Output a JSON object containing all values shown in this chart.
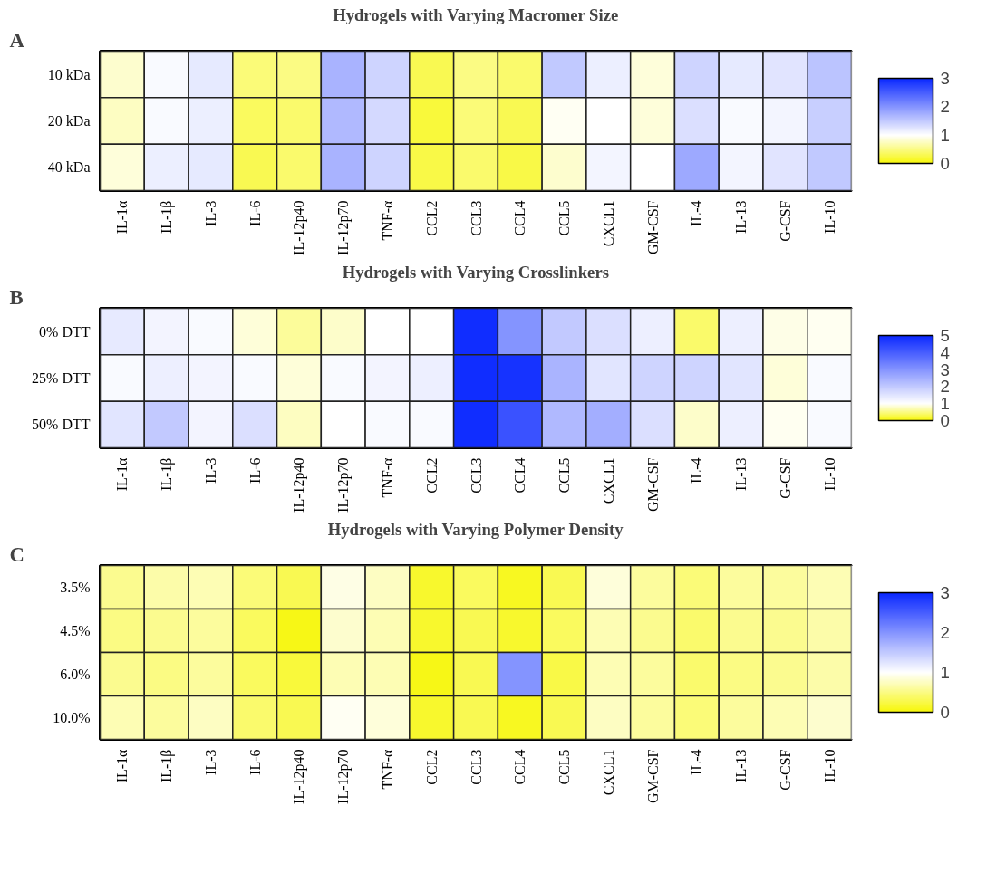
{
  "chart_data": [
    {
      "type": "heatmap",
      "title": "Hydrogels with Varying Macromer Size",
      "annotations": [
        "A"
      ],
      "categories": [
        "IL-1α",
        "IL-1β",
        "IL-3",
        "IL-6",
        "IL-12p40",
        "IL-12p70",
        "TNF-α",
        "CCL2",
        "CCL3",
        "CCL4",
        "CCL5",
        "CXCL1",
        "GM-CSF",
        "IL-4",
        "IL-13",
        "G-CSF",
        "IL-10"
      ],
      "y_categories": [
        "10 kDa",
        "20 kDa",
        "40 kDa"
      ],
      "cells": [
        [
          0.8,
          1.05,
          1.2,
          0.45,
          0.5,
          1.7,
          1.4,
          0.3,
          0.5,
          0.4,
          1.5,
          1.15,
          0.85,
          1.4,
          1.2,
          1.25,
          1.55
        ],
        [
          0.75,
          1.05,
          1.15,
          0.35,
          0.4,
          1.65,
          1.35,
          0.2,
          0.45,
          0.3,
          0.95,
          1.0,
          0.85,
          1.3,
          1.05,
          1.1,
          1.45
        ],
        [
          0.85,
          1.15,
          1.2,
          0.3,
          0.4,
          1.7,
          1.4,
          0.25,
          0.4,
          0.25,
          0.8,
          1.1,
          1.0,
          1.8,
          1.1,
          1.25,
          1.5
        ]
      ],
      "clim": [
        0,
        3
      ],
      "cticks": [
        0,
        1,
        2,
        3
      ]
    },
    {
      "type": "heatmap",
      "title": "Hydrogels with Varying Crosslinkers",
      "annotations": [
        "B"
      ],
      "categories": [
        "IL-1α",
        "IL-1β",
        "IL-3",
        "IL-6",
        "IL-12p40",
        "IL-12p70",
        "TNF-α",
        "CCL2",
        "CCL3",
        "CCL4",
        "CCL5",
        "CXCL1",
        "GM-CSF",
        "IL-4",
        "IL-13",
        "G-CSF",
        "IL-10"
      ],
      "y_categories": [
        "0% DTT",
        "25% DTT",
        "50% DTT"
      ],
      "cells": [
        [
          1.4,
          1.2,
          1.1,
          0.85,
          0.6,
          0.8,
          1.0,
          1.0,
          4.9,
          3.0,
          2.0,
          1.6,
          1.3,
          0.4,
          1.3,
          0.9,
          0.95
        ],
        [
          1.1,
          1.3,
          1.2,
          1.1,
          0.85,
          1.1,
          1.2,
          1.3,
          4.9,
          4.8,
          2.4,
          1.5,
          1.8,
          1.8,
          1.5,
          0.85,
          1.1
        ],
        [
          1.5,
          2.0,
          1.2,
          1.6,
          0.75,
          1.0,
          1.1,
          1.1,
          4.9,
          4.2,
          2.3,
          2.5,
          1.6,
          0.8,
          1.3,
          0.95,
          1.1
        ]
      ],
      "clim": [
        0,
        5
      ],
      "cticks": [
        0,
        1,
        2,
        3,
        4,
        5
      ]
    },
    {
      "type": "heatmap",
      "title": "Hydrogels with Varying Polymer Density",
      "annotations": [
        "C"
      ],
      "categories": [
        "IL-1α",
        "IL-1β",
        "IL-3",
        "IL-6",
        "IL-12p40",
        "IL-12p70",
        "TNF-α",
        "CCL2",
        "CCL3",
        "CCL4",
        "CCL5",
        "CXCL1",
        "GM-CSF",
        "IL-4",
        "IL-13",
        "G-CSF",
        "IL-10"
      ],
      "y_categories": [
        "3.5%",
        "4.5%",
        "6.0%",
        "10.0%"
      ],
      "cells": [
        [
          0.55,
          0.65,
          0.7,
          0.45,
          0.3,
          0.9,
          0.75,
          0.15,
          0.35,
          0.1,
          0.3,
          0.85,
          0.6,
          0.45,
          0.6,
          0.6,
          0.7
        ],
        [
          0.5,
          0.55,
          0.6,
          0.35,
          0.05,
          0.8,
          0.7,
          0.15,
          0.3,
          0.15,
          0.35,
          0.7,
          0.55,
          0.4,
          0.55,
          0.55,
          0.65
        ],
        [
          0.55,
          0.5,
          0.6,
          0.35,
          0.2,
          0.7,
          0.7,
          0.05,
          0.3,
          2.0,
          0.25,
          0.7,
          0.6,
          0.4,
          0.5,
          0.55,
          0.65
        ],
        [
          0.7,
          0.6,
          0.75,
          0.4,
          0.3,
          0.95,
          0.85,
          0.15,
          0.3,
          0.1,
          0.3,
          0.75,
          0.6,
          0.45,
          0.6,
          0.7,
          0.8
        ]
      ],
      "clim": [
        0,
        3
      ],
      "cticks": [
        0,
        1,
        2,
        3
      ]
    }
  ]
}
